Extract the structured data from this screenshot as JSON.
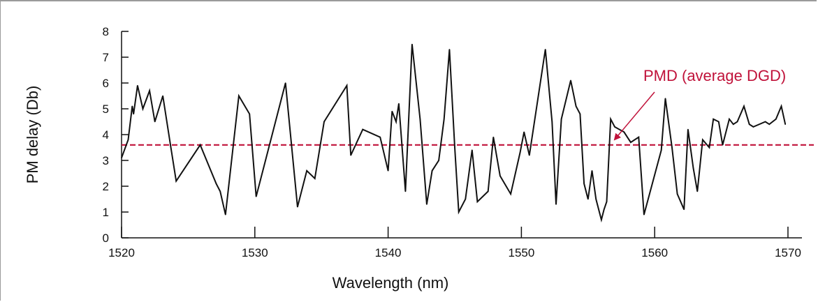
{
  "chart_data": {
    "type": "line",
    "xlabel": "Wavelength (nm)",
    "ylabel": "PM delay (Db)",
    "xlim": [
      1520,
      1570
    ],
    "ylim": [
      0,
      8
    ],
    "xticks": [
      1520,
      1530,
      1540,
      1550,
      1560,
      1570
    ],
    "yticks": [
      0,
      1,
      2,
      3,
      4,
      5,
      6,
      7,
      8
    ],
    "grid": false,
    "series": [
      {
        "color": "#111111",
        "x": [
          1520.0,
          1520.5,
          1520.8,
          1520.9,
          1521.2,
          1521.6,
          1522.1,
          1522.5,
          1523.1,
          1523.7,
          1524.1,
          1525.9,
          1527.1,
          1527.4,
          1527.8,
          1528.8,
          1529.6,
          1530.1,
          1532.3,
          1533.2,
          1533.9,
          1534.5,
          1535.2,
          1536.9,
          1537.2,
          1538.1,
          1539.4,
          1540.0,
          1540.3,
          1540.6,
          1540.8,
          1541.3,
          1541.8,
          1542.4,
          1542.9,
          1543.3,
          1543.8,
          1544.2,
          1544.6,
          1545.0,
          1545.3,
          1545.8,
          1546.3,
          1546.7,
          1547.5,
          1547.9,
          1548.4,
          1549.2,
          1549.9,
          1550.2,
          1550.6,
          1551.8,
          1552.3,
          1552.6,
          1553.0,
          1553.7,
          1554.1,
          1554.4,
          1554.7,
          1555.0,
          1555.3,
          1555.6,
          1556.0,
          1556.2,
          1556.4,
          1556.7,
          1557.0,
          1557.7,
          1558.2,
          1558.8,
          1559.2,
          1560.5,
          1560.8,
          1561.3,
          1561.7,
          1562.2,
          1562.5,
          1562.9,
          1563.2,
          1563.6,
          1564.1,
          1564.4,
          1564.8,
          1565.1,
          1565.6,
          1565.9,
          1566.2,
          1566.7,
          1567.1,
          1567.4,
          1568.3,
          1568.6,
          1569.1,
          1569.5,
          1569.8
        ],
        "y": [
          3.1,
          3.8,
          5.1,
          4.8,
          5.9,
          5.0,
          5.7,
          4.5,
          5.5,
          3.5,
          2.2,
          3.6,
          2.1,
          1.8,
          0.9,
          5.5,
          4.8,
          1.6,
          6.0,
          1.2,
          2.6,
          2.3,
          4.5,
          5.9,
          3.2,
          4.2,
          3.9,
          2.6,
          4.9,
          4.5,
          5.2,
          1.8,
          7.5,
          4.6,
          1.3,
          2.6,
          3.0,
          4.6,
          7.3,
          3.5,
          1.0,
          1.5,
          3.4,
          1.4,
          1.8,
          3.9,
          2.4,
          1.7,
          3.3,
          4.1,
          3.2,
          7.3,
          4.5,
          1.3,
          4.6,
          6.1,
          5.1,
          4.8,
          2.1,
          1.5,
          2.6,
          1.5,
          0.7,
          1.1,
          1.4,
          4.6,
          4.3,
          4.1,
          3.7,
          3.9,
          0.9,
          3.4,
          5.4,
          3.5,
          1.7,
          1.1,
          4.2,
          2.7,
          1.8,
          3.8,
          3.5,
          4.6,
          4.5,
          3.6,
          4.6,
          4.4,
          4.5,
          5.1,
          4.4,
          4.3,
          4.5,
          4.4,
          4.6,
          5.1,
          4.4
        ]
      }
    ],
    "reference_line": {
      "y": 3.6,
      "color": "#c0123a",
      "style": "dashed"
    },
    "annotation": {
      "text": "PMD (average DGD)",
      "color": "#c0123a"
    }
  }
}
